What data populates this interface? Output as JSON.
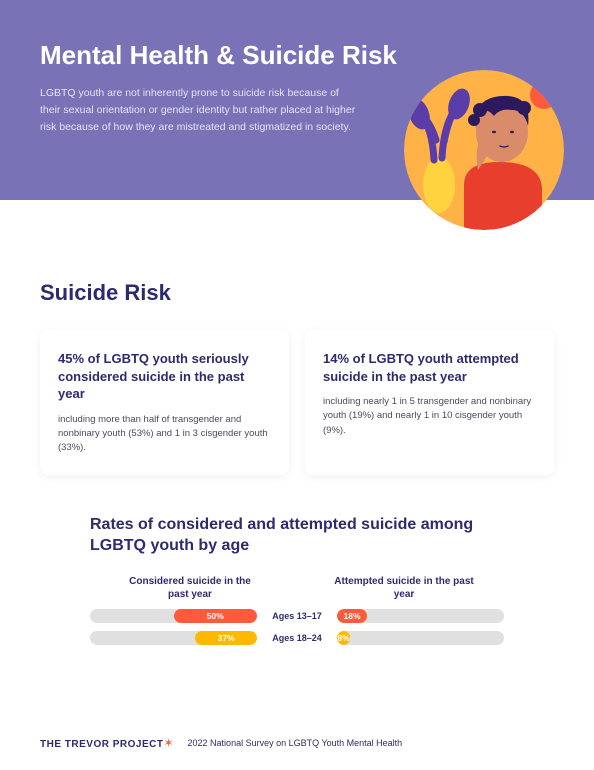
{
  "hero": {
    "title": "Mental Health & Suicide Risk",
    "intro": "LGBTQ youth are not inherently prone to suicide risk because of their sexual orientation or gender identity but rather placed at higher risk because of how they are mistreated and stigmatized in society.",
    "background_color": "#7a72b6",
    "title_color": "#ffffff",
    "illustration": {
      "bg": "#ffb347",
      "shirt": "#e83e2e",
      "skin": "#d98b6a",
      "hair": "#2d1a5e",
      "plant": "#5a3da8",
      "pot": "#ffd23f",
      "accent": "#ff5a3c"
    }
  },
  "section": {
    "title": "Suicide Risk",
    "title_color": "#2e2a6f"
  },
  "stat_cards": [
    {
      "headline": "45% of LGBTQ youth seriously considered suicide in the past year",
      "detail": "including more than half of transgender and nonbinary youth (53%) and 1 in 3 cisgender youth (33%)."
    },
    {
      "headline": "14% of LGBTQ youth attempted suicide in the past year",
      "detail": "including nearly 1 in 5 transgender and nonbinary youth (19%) and nearly 1 in 10 cisgender youth (9%)."
    }
  ],
  "chart": {
    "title": "Rates of considered and attempted suicide among LGBTQ youth by age",
    "left_label": "Considered suicide in the past year",
    "right_label": "Attempted suicide in the past year",
    "track_color": "#e0e0e0",
    "rows": [
      {
        "age": "Ages 13–17",
        "considered_pct": 50,
        "considered_label": "50%",
        "considered_color": "#ff5a3c",
        "attempted_pct": 18,
        "attempted_label": "18%",
        "attempted_color": "#ff5a3c"
      },
      {
        "age": "Ages 18–24",
        "considered_pct": 37,
        "considered_label": "37%",
        "considered_color": "#ffb800",
        "attempted_pct": 8,
        "attempted_label": "8%",
        "attempted_color": "#ffb800"
      }
    ]
  },
  "footer": {
    "brand": "THE TREVOR PROJECT",
    "survey": "2022 National Survey on LGBTQ Youth Mental Health"
  }
}
